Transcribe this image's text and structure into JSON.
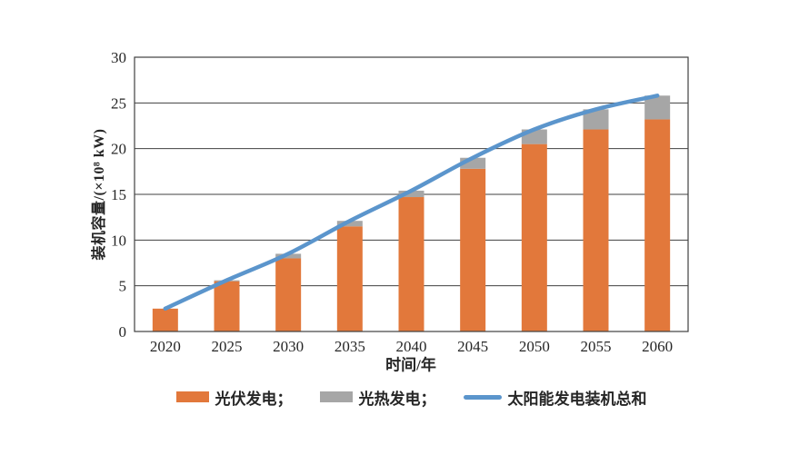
{
  "chart_data": {
    "type": "bar",
    "subtype": "stacked-bars-with-total-line",
    "title": "",
    "xlabel": "时间/年",
    "ylabel": "装机容量/(×10⁸ kW)",
    "categories": [
      "2020",
      "2025",
      "2030",
      "2035",
      "2040",
      "2045",
      "2050",
      "2055",
      "2060"
    ],
    "series": [
      {
        "name": "光伏发电",
        "type": "bar",
        "stacked": true,
        "color": "#E2783B",
        "values": [
          2.5,
          5.5,
          8.0,
          11.5,
          14.7,
          17.8,
          20.5,
          22.1,
          23.2
        ]
      },
      {
        "name": "光热发电",
        "type": "bar",
        "stacked": true,
        "color": "#A6A6A6",
        "values": [
          0.0,
          0.1,
          0.5,
          0.6,
          0.7,
          1.2,
          1.6,
          2.2,
          2.6
        ]
      },
      {
        "name": "太阳能发电装机总和",
        "type": "line",
        "smooth": true,
        "color": "#5B95CC",
        "values": [
          2.5,
          5.6,
          8.5,
          12.1,
          15.4,
          19.0,
          22.1,
          24.3,
          25.8
        ]
      }
    ],
    "ylim": [
      0,
      30
    ],
    "yticks": [
      0,
      5,
      10,
      15,
      20,
      25,
      30
    ],
    "grid": "horizontal",
    "axis_color": "#404040",
    "text_color": "#262626",
    "background": "#ffffff",
    "legend_position": "bottom",
    "legend": [
      {
        "label": "光伏发电；",
        "swatch": "rect",
        "color": "#E2783B"
      },
      {
        "label": "光热发电；",
        "swatch": "rect",
        "color": "#A6A6A6"
      },
      {
        "label": "太阳能发电装机总和",
        "swatch": "line",
        "color": "#5B95CC"
      }
    ]
  }
}
